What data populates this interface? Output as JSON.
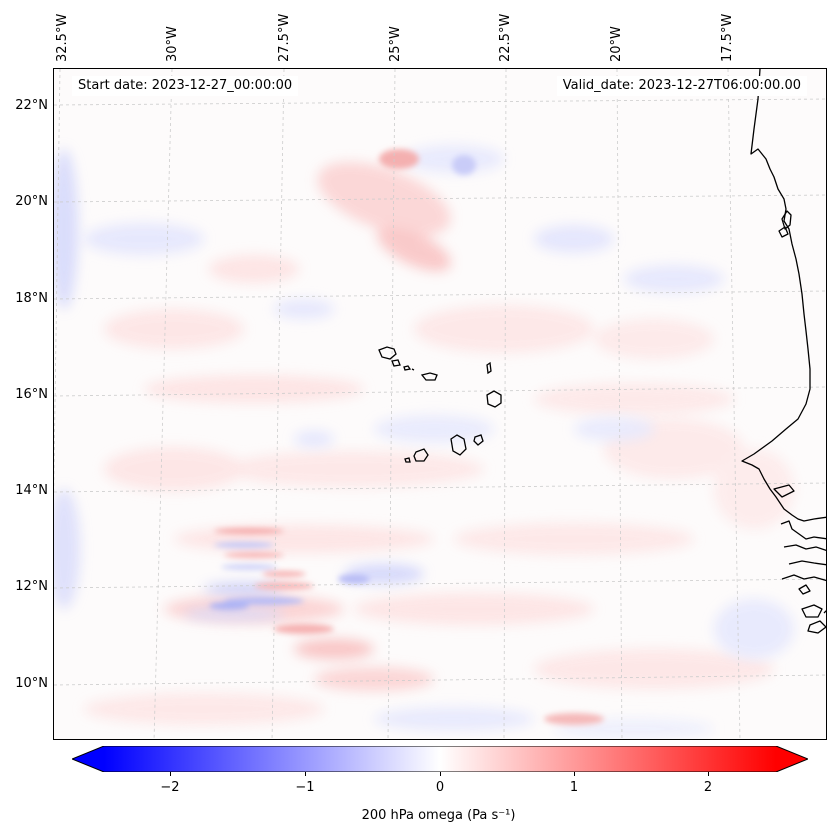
{
  "map": {
    "start_label": "Start date: 2023-12-27_00:00:00",
    "valid_label": "Valid_date: 2023-12-27T06:00:00.00",
    "longitude_labels": [
      "32.5°W",
      "30°W",
      "27.5°W",
      "25°W",
      "22.5°W",
      "20°W",
      "17.5°W"
    ],
    "latitude_labels": [
      "22°N",
      "20°N",
      "18°N",
      "16°N",
      "14°N",
      "12°N",
      "10°N"
    ],
    "extent": {
      "lon_min": -32.6,
      "lon_max": -15.2,
      "lat_min": 8.9,
      "lat_max": 22.8
    }
  },
  "colorbar": {
    "label": "200 hPa omega (Pa s⁻¹)",
    "ticks": [
      "−2",
      "−1",
      "0",
      "1",
      "2"
    ],
    "tick_values": [
      -2,
      -1,
      0,
      1,
      2
    ],
    "range": [
      -2.5,
      2.5
    ],
    "colors": {
      "negative": "#0000ff",
      "zero": "#ffffff",
      "positive": "#ff0000"
    },
    "extend": "both"
  },
  "colors": {
    "coastline": "#000000",
    "gridline": "#cccccc"
  }
}
